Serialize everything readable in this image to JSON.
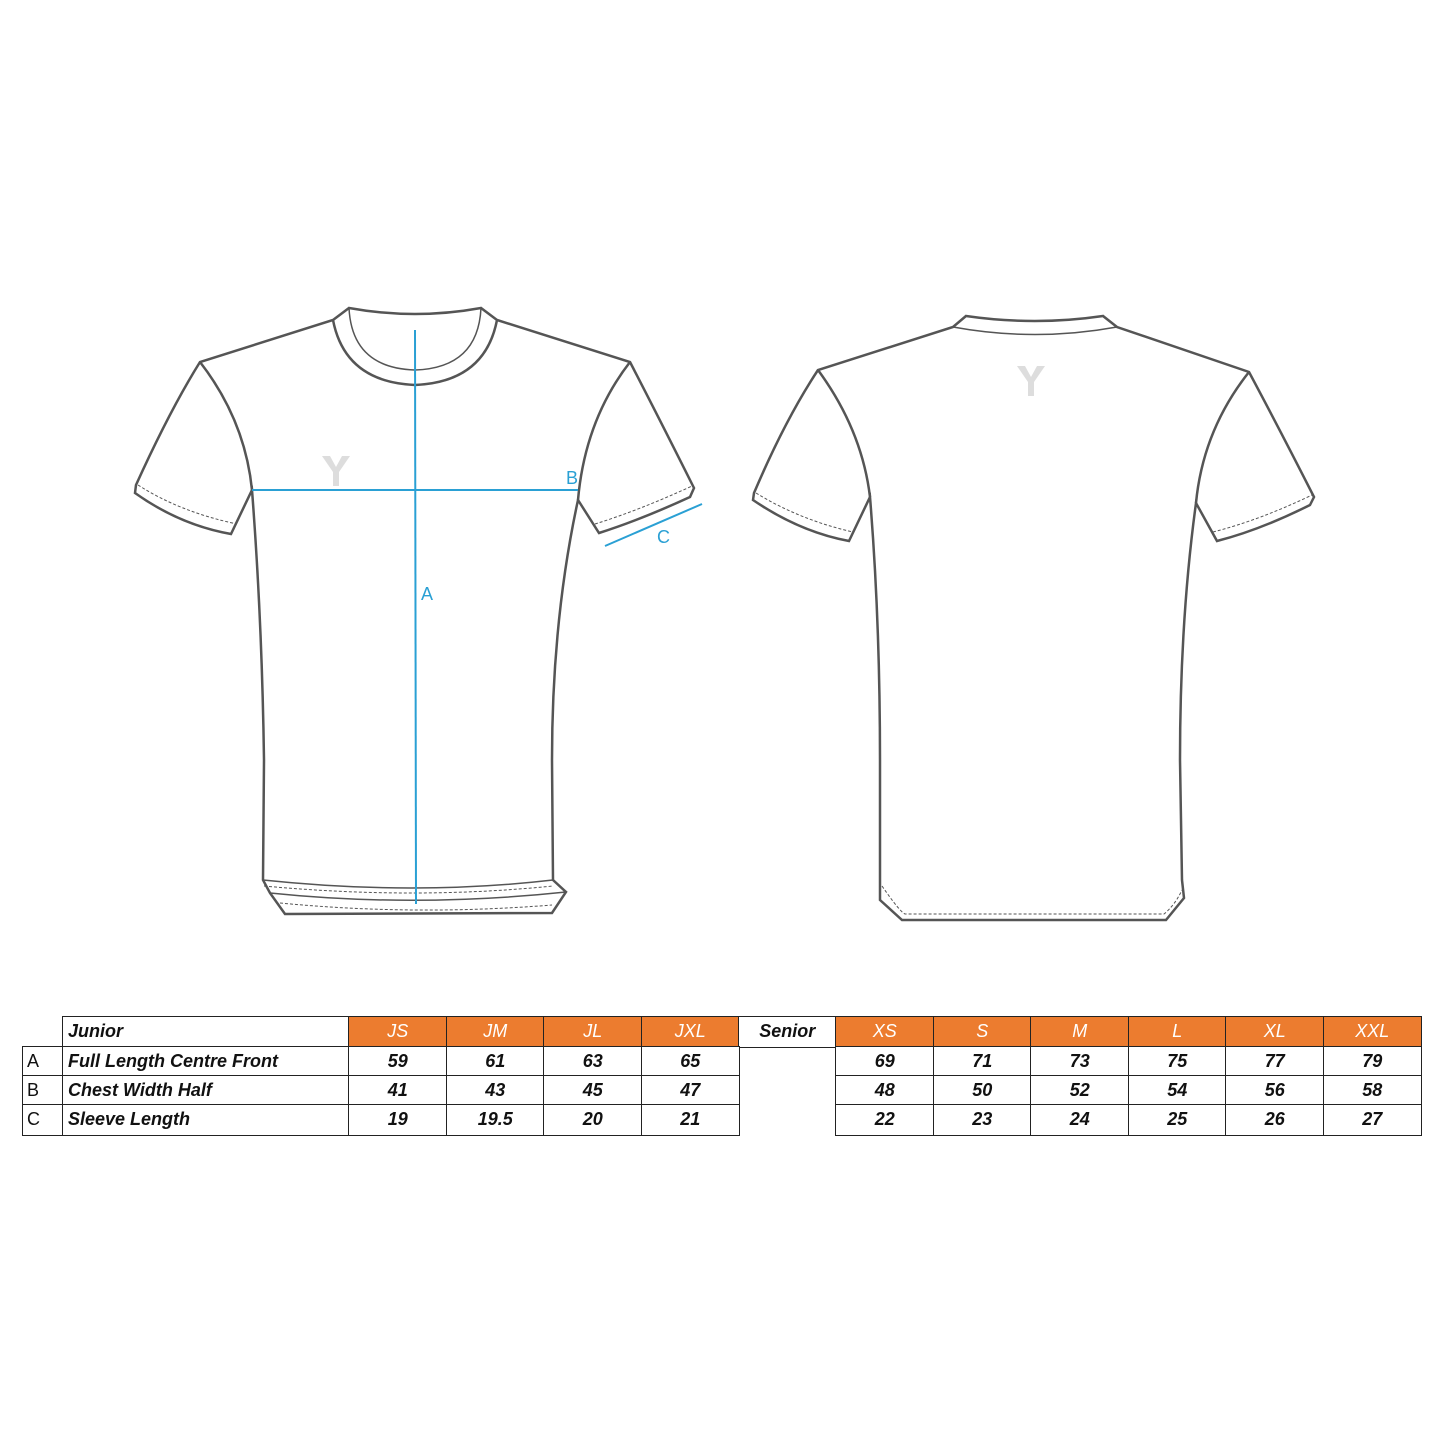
{
  "diagram": {
    "measure_labels": {
      "a": "A",
      "b": "B",
      "c": "C"
    },
    "measure_color": "#2aa0d4",
    "outline_color": "#555555"
  },
  "table": {
    "header_color": "#ec7c2f",
    "junior": {
      "title": "Junior",
      "sizes": [
        "JS",
        "JM",
        "JL",
        "JXL"
      ],
      "rows": [
        {
          "letter": "A",
          "label": "Full Length Centre Front",
          "values": [
            "59",
            "61",
            "63",
            "65"
          ]
        },
        {
          "letter": "B",
          "label": "Chest Width Half",
          "values": [
            "41",
            "43",
            "45",
            "47"
          ]
        },
        {
          "letter": "C",
          "label": "Sleeve Length",
          "values": [
            "19",
            "19.5",
            "20",
            "21"
          ]
        }
      ]
    },
    "senior": {
      "title": "Senior",
      "sizes": [
        "XS",
        "S",
        "M",
        "L",
        "XL",
        "XXL"
      ],
      "rows": [
        {
          "values": [
            "69",
            "71",
            "73",
            "75",
            "77",
            "79"
          ]
        },
        {
          "values": [
            "48",
            "50",
            "52",
            "54",
            "56",
            "58"
          ]
        },
        {
          "values": [
            "22",
            "23",
            "24",
            "25",
            "26",
            "27"
          ]
        }
      ]
    }
  }
}
